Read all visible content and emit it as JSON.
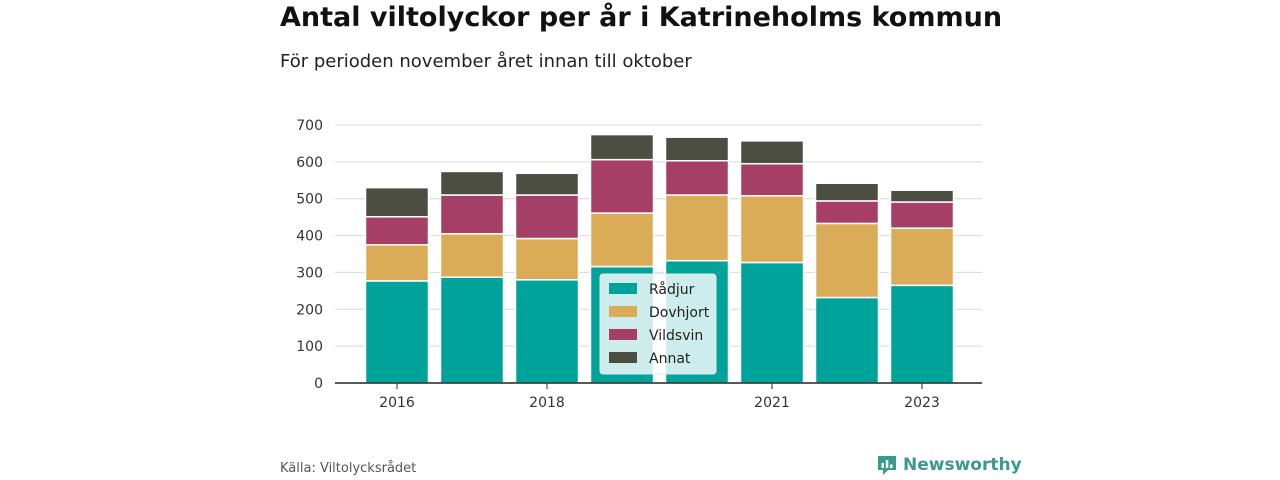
{
  "title": "Antal viltolyckor per år i Katrineholms kommun",
  "subtitle": "För perioden november året innan till oktober",
  "source": "Källa: Viltolycksrådet",
  "brand": {
    "name": "Newsworthy",
    "icon": "newsworthy-logo-icon",
    "color": "#3a9a8e"
  },
  "chart_data": {
    "type": "bar",
    "stacked": true,
    "categories": [
      "2016",
      "2017",
      "2018",
      "2019",
      "2020",
      "2021",
      "2022",
      "2023"
    ],
    "x_tick_labels": [
      "2016",
      "2018",
      "2021",
      "2023"
    ],
    "series": [
      {
        "name": "Rådjur",
        "color": "#00a39a",
        "values": [
          277,
          287,
          280,
          316,
          332,
          327,
          232,
          265
        ]
      },
      {
        "name": "Dovhjort",
        "color": "#dbac58",
        "values": [
          98,
          118,
          112,
          145,
          178,
          181,
          201,
          155
        ]
      },
      {
        "name": "Vildsvin",
        "color": "#a53f66",
        "values": [
          76,
          105,
          118,
          145,
          93,
          87,
          61,
          71
        ]
      },
      {
        "name": "Annat",
        "color": "#4b4e40",
        "values": [
          79,
          64,
          59,
          68,
          64,
          62,
          48,
          32
        ]
      }
    ],
    "ylim": [
      0,
      700
    ],
    "yticks": [
      0,
      100,
      200,
      300,
      400,
      500,
      600,
      700
    ],
    "grid": true,
    "legend_position": "center-inside"
  }
}
